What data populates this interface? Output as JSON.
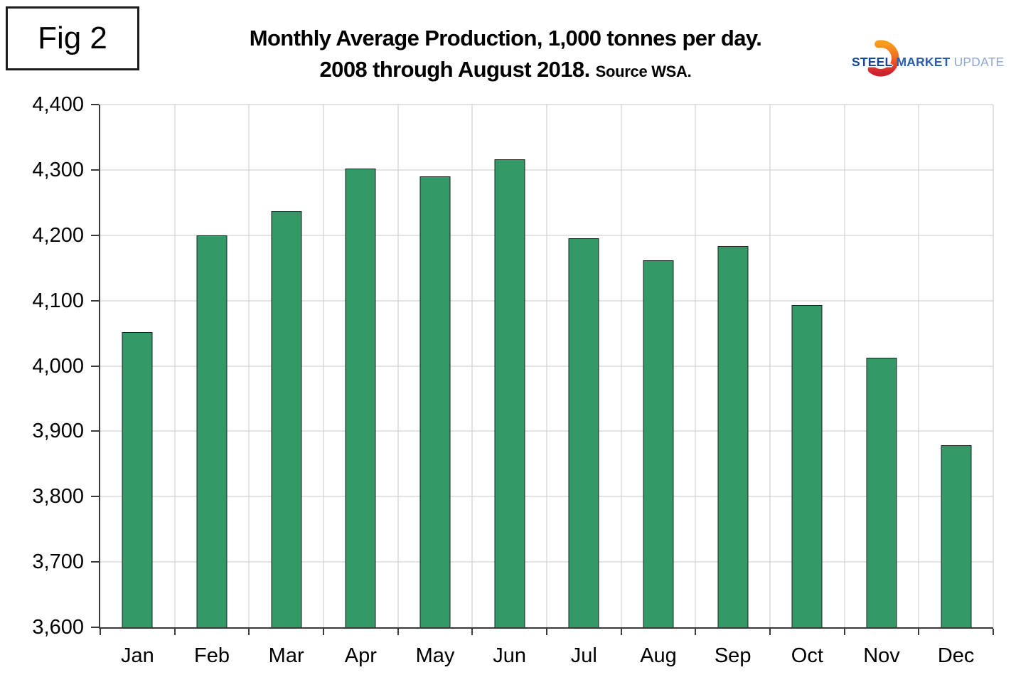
{
  "figure": {
    "label": "Fig 2"
  },
  "title": {
    "line1": "Monthly Average Production, 1,000 tonnes per day.",
    "line2": "2008 through August 2018.",
    "source": "Source WSA."
  },
  "logo": {
    "word1": "STEEL",
    "word2": "MARKET",
    "word3": "UPDATE",
    "colors": {
      "word1": "#12489b",
      "word2": "#2b5fad",
      "word3": "#8ea6d4",
      "crescent_top": "#f89c1c",
      "crescent_mid": "#ef6823",
      "crescent_bottom": "#cf2030"
    }
  },
  "chart_data": {
    "type": "bar",
    "title": "Monthly Average Production, 1,000 tonnes per day. 2008 through August 2018.",
    "source": "Source WSA.",
    "unit": "1,000 tonnes per day",
    "categories": [
      "Jan",
      "Feb",
      "Mar",
      "Apr",
      "May",
      "Jun",
      "Jul",
      "Aug",
      "Sep",
      "Oct",
      "Nov",
      "Dec"
    ],
    "values": [
      4052,
      4200,
      4237,
      4302,
      4290,
      4316,
      4195,
      4162,
      4183,
      4093,
      4012,
      3879
    ],
    "ylim": [
      3600,
      4400
    ],
    "ytick_step": 100,
    "yticks": [
      {
        "value": 3600,
        "label": "3,600"
      },
      {
        "value": 3700,
        "label": "3,700"
      },
      {
        "value": 3800,
        "label": "3,800"
      },
      {
        "value": 3900,
        "label": "3,900"
      },
      {
        "value": 4000,
        "label": "4,000"
      },
      {
        "value": 4100,
        "label": "4,100"
      },
      {
        "value": 4200,
        "label": "4,200"
      },
      {
        "value": 4300,
        "label": "4,300"
      },
      {
        "value": 4400,
        "label": "4,400"
      }
    ],
    "grid": true,
    "legend": "none",
    "bar_color": "#339966",
    "bar_border_color": "#1f1f1f",
    "gridline_color": "#c9c9c9",
    "axis_color": "#3a3a3a"
  }
}
